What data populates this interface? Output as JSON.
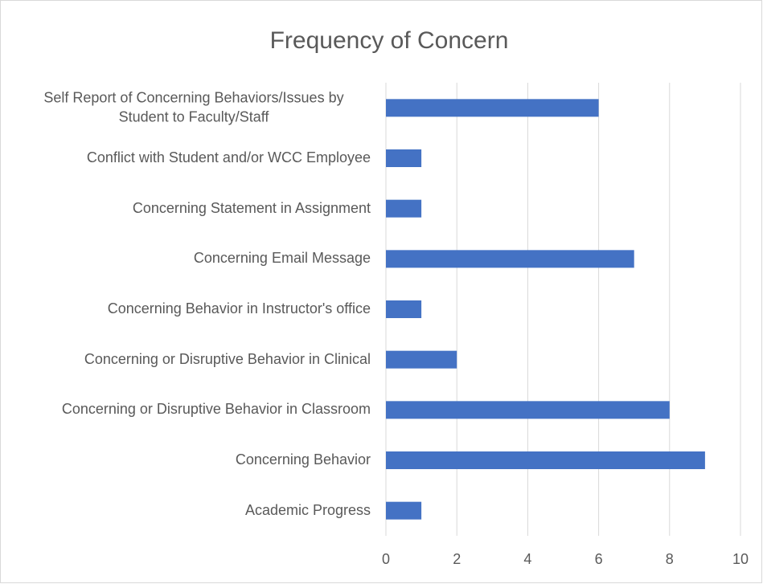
{
  "chart_data": {
    "type": "bar",
    "orientation": "horizontal",
    "title": "Frequency of Concern",
    "categories": [
      "Self Report of Concerning Behaviors/Issues by Student to Faculty/Staff",
      "Conflict with Student and/or WCC Employee",
      "Concerning Statement in Assignment",
      "Concerning Email Message",
      "Concerning Behavior in Instructor's office",
      "Concerning or Disruptive Behavior in Clinical",
      "Concerning or Disruptive Behavior in Classroom",
      "Concerning Behavior",
      "Academic Progress"
    ],
    "values": [
      6,
      1,
      1,
      7,
      1,
      2,
      8,
      9,
      1
    ],
    "color": "#4472c4",
    "xlim": [
      0,
      10
    ],
    "xticks": [
      0,
      2,
      4,
      6,
      8,
      10
    ],
    "grid": true
  }
}
